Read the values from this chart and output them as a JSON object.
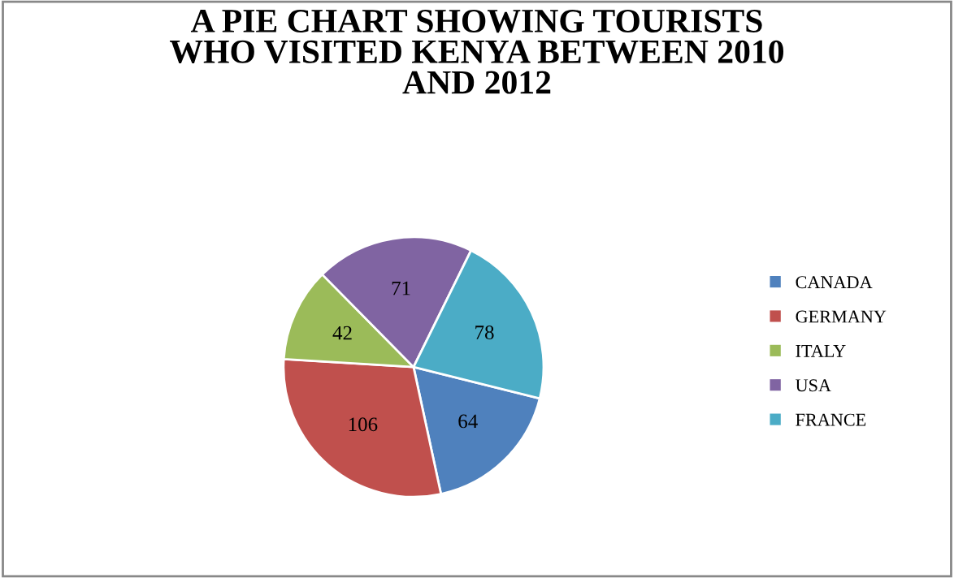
{
  "chart_data": {
    "type": "pie",
    "title": "A PIE CHART SHOWING TOURISTS\nWHO VISITED KENYA BETWEEN 2010\nAND 2012",
    "categories": [
      "CANADA",
      "GERMANY",
      "ITALY",
      "USA",
      "FRANCE"
    ],
    "values": [
      64,
      106,
      42,
      71,
      78
    ],
    "colors": [
      "#4f81bd",
      "#c0504d",
      "#9bbb59",
      "#8064a2",
      "#4bacc6"
    ],
    "data_labels": true,
    "legend": "right"
  }
}
